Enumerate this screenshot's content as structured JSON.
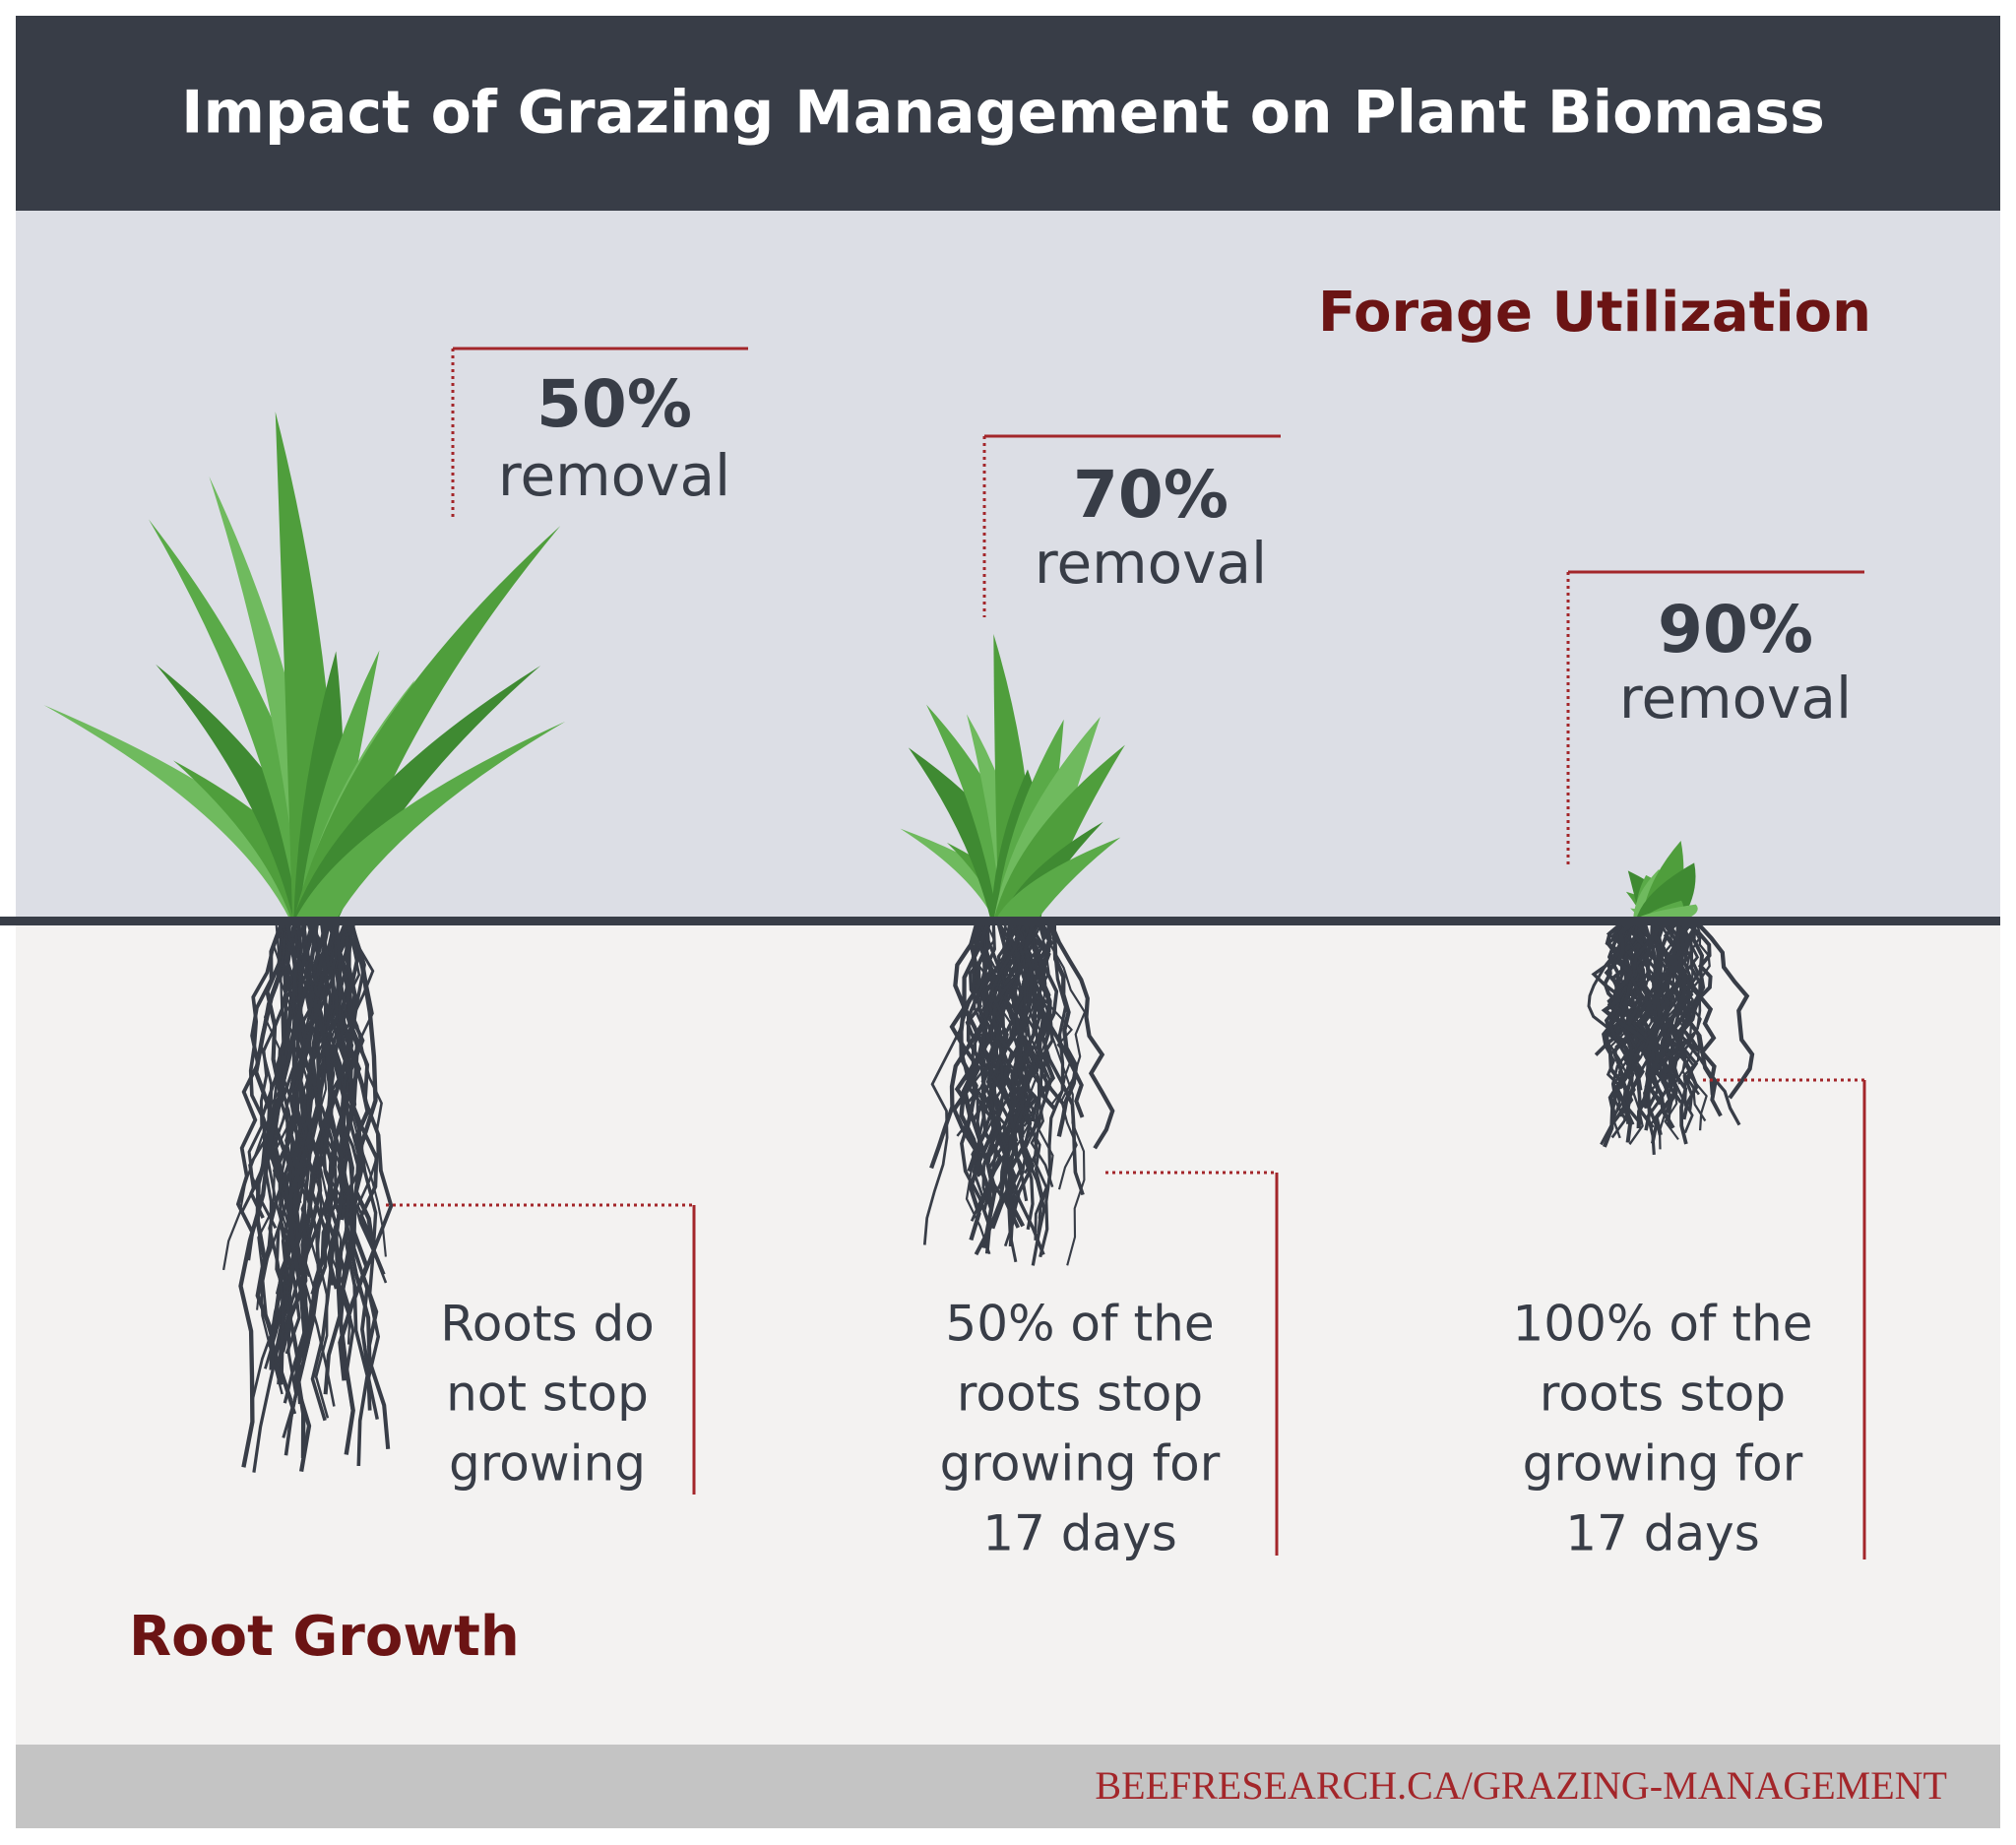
{
  "header": {
    "title": "Impact of Grazing Management on Plant Biomass"
  },
  "sections": {
    "top": "Forage Utilization",
    "bottom": "Root Growth"
  },
  "plants": [
    {
      "removal_value": "50%",
      "removal_label": "removal",
      "root_text": [
        "Roots do",
        "not stop",
        "growing"
      ]
    },
    {
      "removal_value": "70%",
      "removal_label": "removal",
      "root_text": [
        "50% of the",
        "roots stop",
        "growing for",
        "17 days"
      ]
    },
    {
      "removal_value": "90%",
      "removal_label": "removal",
      "root_text": [
        "100% of the",
        "roots stop",
        "growing for",
        "17 days"
      ]
    }
  ],
  "footer": {
    "url": "BEEFRESEARCH.CA/GRAZING-MANAGEMENT"
  }
}
